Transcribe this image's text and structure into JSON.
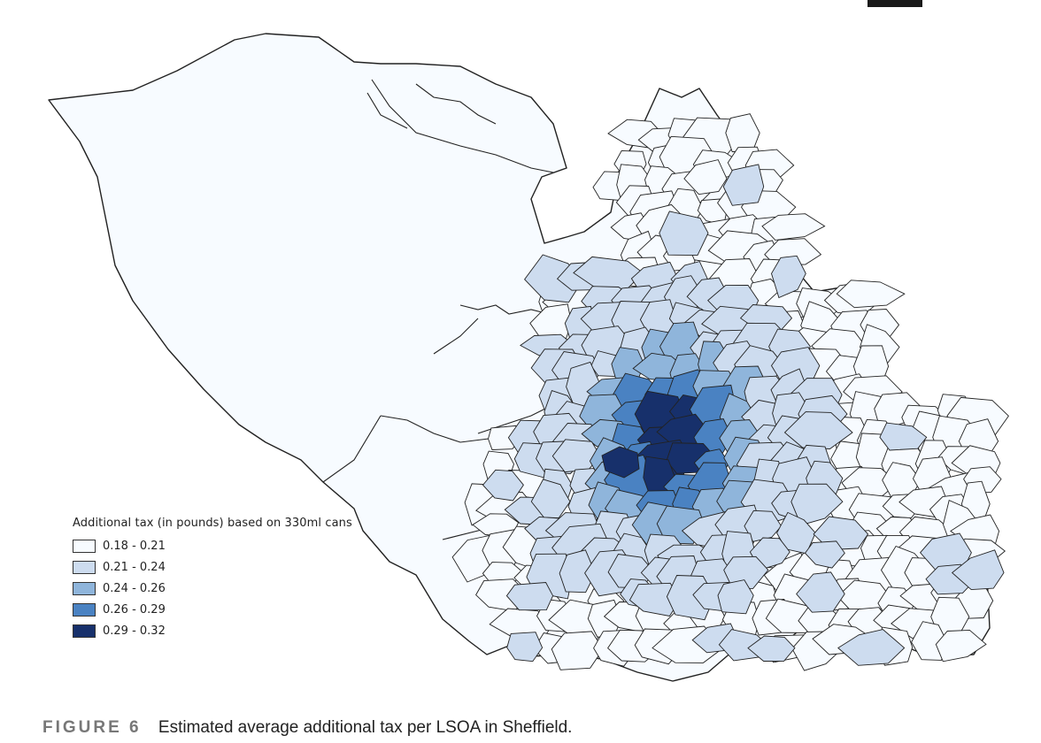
{
  "caption": {
    "figure_label": "FIGURE 6",
    "text": "Estimated average additional tax per LSOA in Sheffield."
  },
  "legend": {
    "title": "Additional tax (in pounds) based on 330ml cans",
    "classes": [
      {
        "label": "0.18 - 0.21",
        "color": "#f7fbff"
      },
      {
        "label": "0.21 - 0.24",
        "color": "#cddcef"
      },
      {
        "label": "0.24 - 0.26",
        "color": "#8fb5db"
      },
      {
        "label": "0.26 - 0.29",
        "color": "#4a82c2"
      },
      {
        "label": "0.29 - 0.32",
        "color": "#17306b"
      }
    ]
  },
  "map": {
    "region": "Sheffield",
    "boundary_color": "#222222"
  }
}
